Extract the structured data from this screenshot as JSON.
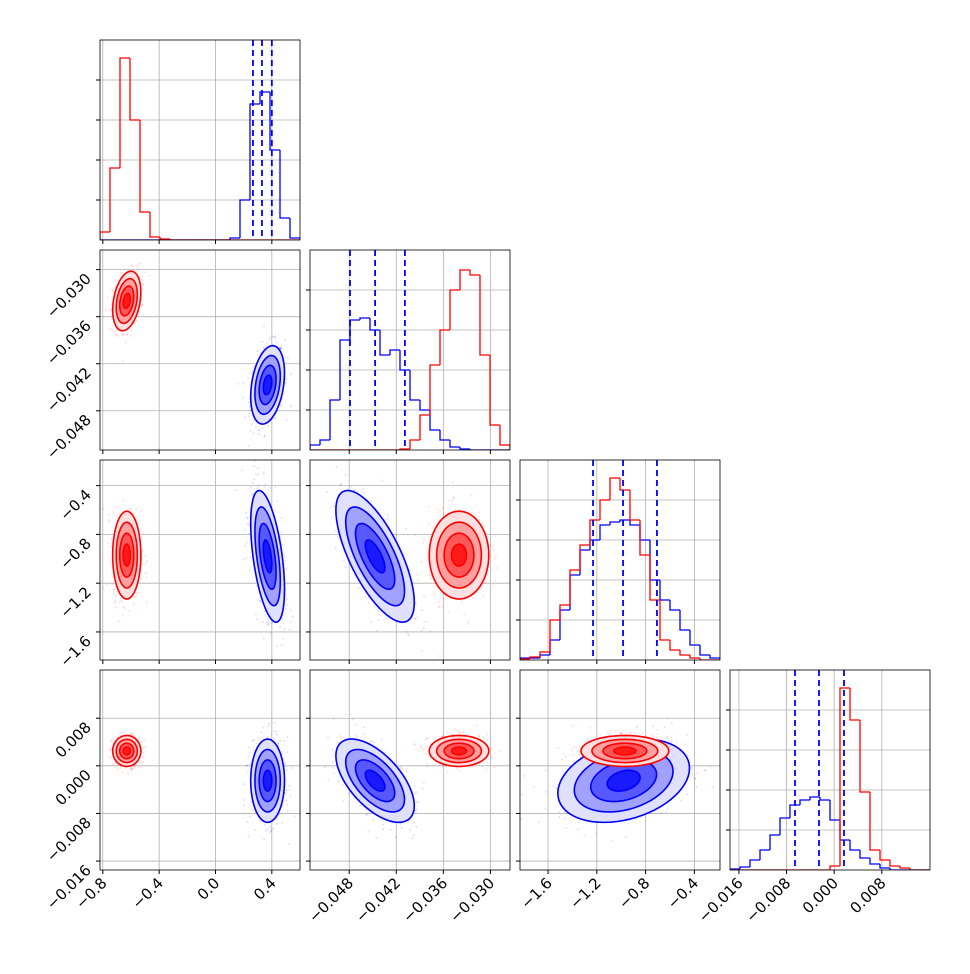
{
  "chart_data": {
    "type": "corner",
    "grid": true,
    "params": [
      {
        "lim": [
          -0.82,
          0.6
        ],
        "ticks": [
          {
            "value": -0.8,
            "label": "−0.8"
          },
          {
            "value": -0.4,
            "label": "−0.4"
          },
          {
            "value": 0,
            "label": "0.0"
          },
          0.4
        ]
      },
      {
        "lim": [
          -0.053,
          -0.0275
        ],
        "ticks": [
          {
            "value": -0.048,
            "label": "−0.048"
          },
          {
            "value": -0.042,
            "label": "−0.042"
          },
          {
            "value": -0.036,
            "label": "−0.036"
          },
          {
            "value": -0.03,
            "label": "−0.030"
          }
        ]
      },
      {
        "lim": [
          -1.83,
          -0.19
        ],
        "ticks": [
          {
            "value": -1.6,
            "label": "−1.6"
          },
          {
            "value": -1.2,
            "label": "−1.2"
          },
          {
            "value": -0.8,
            "label": "−0.8"
          },
          {
            "value": -0.4,
            "label": "−0.4"
          }
        ]
      },
      {
        "lim": [
          -0.0175,
          0.0161
        ],
        "ticks": [
          {
            "value": -0.016,
            "label": "−0.016"
          },
          {
            "value": -0.008,
            "label": "−0.008"
          },
          {
            "value": 0,
            "label": "0.000"
          },
          0.008
        ]
      }
    ],
    "series": [
      {
        "color": "#0000ff",
        "means": [
          0.37,
          -0.0447,
          -0.98,
          -0.0025
        ],
        "stds": [
          0.06,
          0.0025,
          0.27,
          0.0035
        ],
        "corr": [
          [
            1,
            0.3,
            -0.5,
            0
          ],
          [
            0.3,
            1,
            -0.7,
            -0.6
          ],
          [
            -0.5,
            -0.7,
            1,
            0.3
          ],
          [
            0,
            -0.6,
            0.3,
            1
          ]
        ]
      },
      {
        "color": "#ff0000",
        "means": [
          -0.63,
          -0.034,
          -0.97,
          0.0025
        ],
        "stds": [
          0.05,
          0.0019,
          0.18,
          0.0013
        ],
        "corr": [
          [
            1,
            0.3,
            0,
            0
          ],
          [
            0.3,
            1,
            0,
            0
          ],
          [
            0,
            0,
            1,
            0
          ],
          [
            0,
            0,
            0,
            1
          ]
        ]
      }
    ],
    "quantile_color": "#0000ff",
    "diagonals": [
      {
        "bins": [
          -0.82,
          -0.749,
          -0.678,
          -0.607,
          -0.536,
          -0.465,
          -0.394,
          -0.323,
          -0.252,
          -0.181,
          -0.11,
          -0.039,
          0.032,
          0.103,
          0.174,
          0.245,
          0.316,
          0.387,
          0.458,
          0.529,
          0.6
        ],
        "ylim": [
          0,
          1
        ],
        "yticks": [
          0.2,
          0.4,
          0.6,
          0.8
        ],
        "quantiles": [
          0.266,
          0.33,
          0.4
        ],
        "series": [
          {
            "color": "#0000ff",
            "counts": [
              0,
              0,
              0,
              0,
              0,
              0,
              0,
              0,
              0,
              0,
              0,
              0,
              0,
              0.01,
              0.2,
              0.68,
              0.74,
              0.45,
              0.11,
              0.01
            ]
          },
          {
            "color": "#ff0000",
            "counts": [
              0.04,
              0.36,
              0.91,
              0.6,
              0.14,
              0.015,
              0.005,
              0,
              0,
              0,
              0,
              0,
              0,
              0,
              0,
              0,
              0,
              0,
              0,
              0
            ]
          }
        ]
      },
      {
        "bins": [
          -0.053,
          -0.051725,
          -0.05045,
          -0.049175,
          -0.0479,
          -0.046625,
          -0.04535,
          -0.044075,
          -0.0428,
          -0.041525,
          -0.04025,
          -0.038975,
          -0.0377,
          -0.036425,
          -0.03515,
          -0.033875,
          -0.0326,
          -0.031325,
          -0.03005,
          -0.028775,
          -0.0275
        ],
        "ylim": [
          0,
          1
        ],
        "yticks": [
          0.2,
          0.4,
          0.6,
          0.8
        ],
        "quantiles": [
          -0.0479,
          -0.0447,
          -0.0409
        ],
        "series": [
          {
            "color": "#0000ff",
            "counts": [
              0.025,
              0.05,
              0.25,
              0.55,
              0.65,
              0.66,
              0.6,
              0.475,
              0.5,
              0.4,
              0.25,
              0.2,
              0.1,
              0.05,
              0.015,
              0.005,
              0,
              0,
              0,
              0
            ]
          },
          {
            "color": "#ff0000",
            "counts": [
              0,
              0,
              0,
              0,
              0,
              0,
              0,
              0,
              0,
              0.005,
              0.05,
              0.175,
              0.425,
              0.6,
              0.8,
              0.9,
              0.875,
              0.475,
              0.125,
              0.025
            ]
          }
        ]
      },
      {
        "bins": [
          -1.83,
          -1.748,
          -1.666,
          -1.584,
          -1.502,
          -1.42,
          -1.338,
          -1.256,
          -1.174,
          -1.092,
          -1.01,
          -0.928,
          -0.846,
          -0.764,
          -0.682,
          -0.6,
          -0.518,
          -0.436,
          -0.354,
          -0.272,
          -0.19
        ],
        "ylim": [
          0,
          1
        ],
        "yticks": [
          0.2,
          0.4,
          0.6,
          0.8
        ],
        "quantiles": [
          -1.231,
          -0.985,
          -0.707
        ],
        "series": [
          {
            "color": "#0000ff",
            "counts": [
              0.01,
              0.01,
              0.025,
              0.1,
              0.25,
              0.425,
              0.55,
              0.6,
              0.675,
              0.69,
              0.7,
              0.675,
              0.6,
              0.4,
              0.3,
              0.25,
              0.15,
              0.075,
              0.025,
              0.01
            ]
          },
          {
            "color": "#ff0000",
            "counts": [
              0.005,
              0.015,
              0.04,
              0.2,
              0.275,
              0.45,
              0.575,
              0.7,
              0.8,
              0.91,
              0.85,
              0.7,
              0.525,
              0.3,
              0.1,
              0.05,
              0.025,
              0.01,
              0,
              0
            ]
          }
        ]
      },
      {
        "bins": [
          -0.0175,
          -0.01582,
          -0.01414,
          -0.01246,
          -0.01078,
          -0.0091,
          -0.00742,
          -0.00574,
          -0.00406,
          -0.00238,
          -0.0007,
          0.00098,
          0.00266,
          0.00434,
          0.00602,
          0.0077,
          0.00938,
          0.01106,
          0.01274,
          0.01442,
          0.0161
        ],
        "ylim": [
          0,
          1
        ],
        "yticks": [
          0.2,
          0.4,
          0.6,
          0.8
        ],
        "quantiles": [
          -0.00658,
          -0.00255,
          0.00165
        ],
        "series": [
          {
            "color": "#0000ff",
            "counts": [
              0.005,
              0.015,
              0.05,
              0.1,
              0.175,
              0.26,
              0.325,
              0.35,
              0.365,
              0.35,
              0.25,
              0.15,
              0.1,
              0.06,
              0.03,
              0.01,
              0,
              0,
              0,
              0
            ]
          },
          {
            "color": "#ff0000",
            "counts": [
              0,
              0,
              0,
              0,
              0,
              0,
              0,
              0,
              0,
              0,
              0.02,
              0.91,
              0.75,
              0.39,
              0.1,
              0.05,
              0.02,
              0.01,
              0,
              0
            ]
          }
        ]
      }
    ]
  }
}
